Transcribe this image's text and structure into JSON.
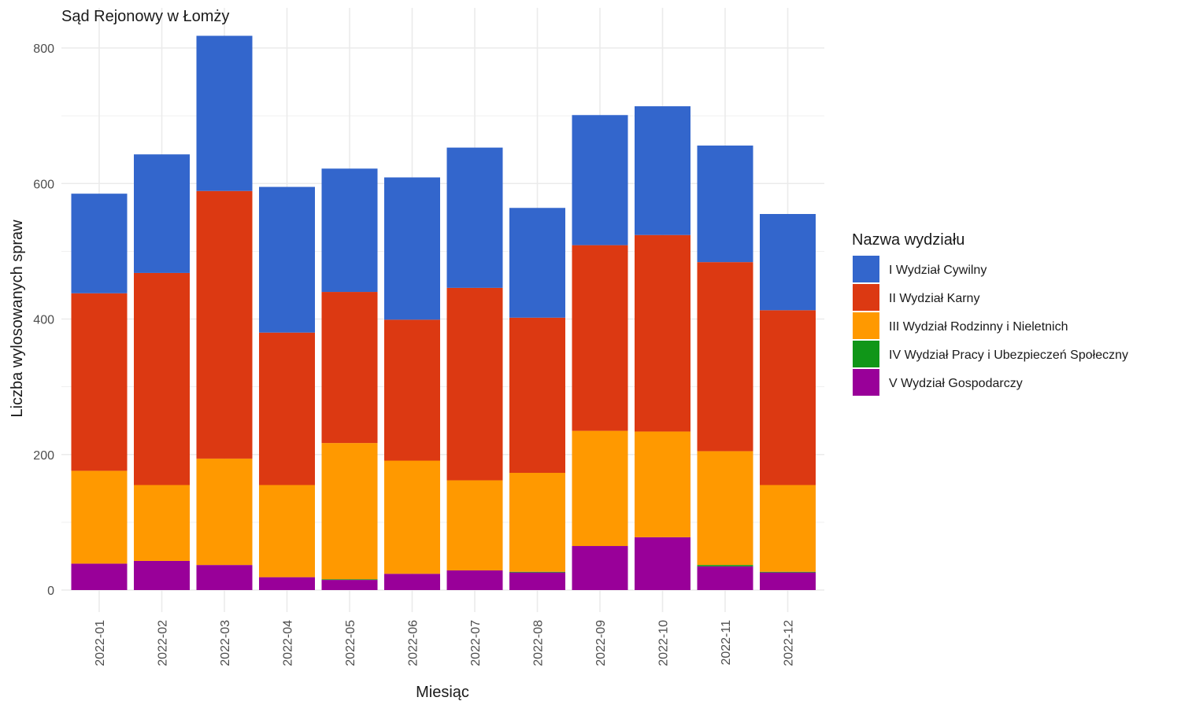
{
  "chart_data": {
    "type": "bar",
    "stacked": true,
    "title": "Sąd Rejonowy w Łomży",
    "xlabel": "Miesiąc",
    "ylabel": "Liczba wylosowanych spraw",
    "ylim": [
      0,
      800
    ],
    "y_ticks": [
      "0",
      "200",
      "400",
      "600",
      "800"
    ],
    "grid": true,
    "legend_title": "Nazwa wydziału",
    "legend_position": "right",
    "categories": [
      "2022-01",
      "2022-02",
      "2022-03",
      "2022-04",
      "2022-05",
      "2022-06",
      "2022-07",
      "2022-08",
      "2022-09",
      "2022-10",
      "2022-11",
      "2022-12"
    ],
    "series": [
      {
        "name": "I Wydział Cywilny",
        "color": "#3366cc",
        "values": [
          147,
          175,
          229,
          215,
          182,
          210,
          207,
          162,
          192,
          190,
          172,
          142
        ]
      },
      {
        "name": "II Wydział Karny",
        "color": "#dc3912",
        "values": [
          262,
          313,
          395,
          225,
          223,
          208,
          284,
          229,
          274,
          290,
          279,
          258
        ]
      },
      {
        "name": "III Wydział Rodzinny i Nieletnich",
        "color": "#ff9900",
        "values": [
          137,
          112,
          157,
          136,
          201,
          167,
          133,
          146,
          170,
          156,
          168,
          128
        ]
      },
      {
        "name": "IV Wydział Pracy i Ubezpieczeń Społeczny",
        "color": "#109618",
        "values": [
          0,
          0,
          0,
          0,
          1,
          0,
          0,
          1,
          0,
          0,
          2,
          1
        ]
      },
      {
        "name": "V Wydział Gospodarczy",
        "color": "#990099",
        "values": [
          39,
          43,
          37,
          19,
          15,
          24,
          29,
          26,
          65,
          78,
          35,
          26
        ]
      }
    ]
  }
}
